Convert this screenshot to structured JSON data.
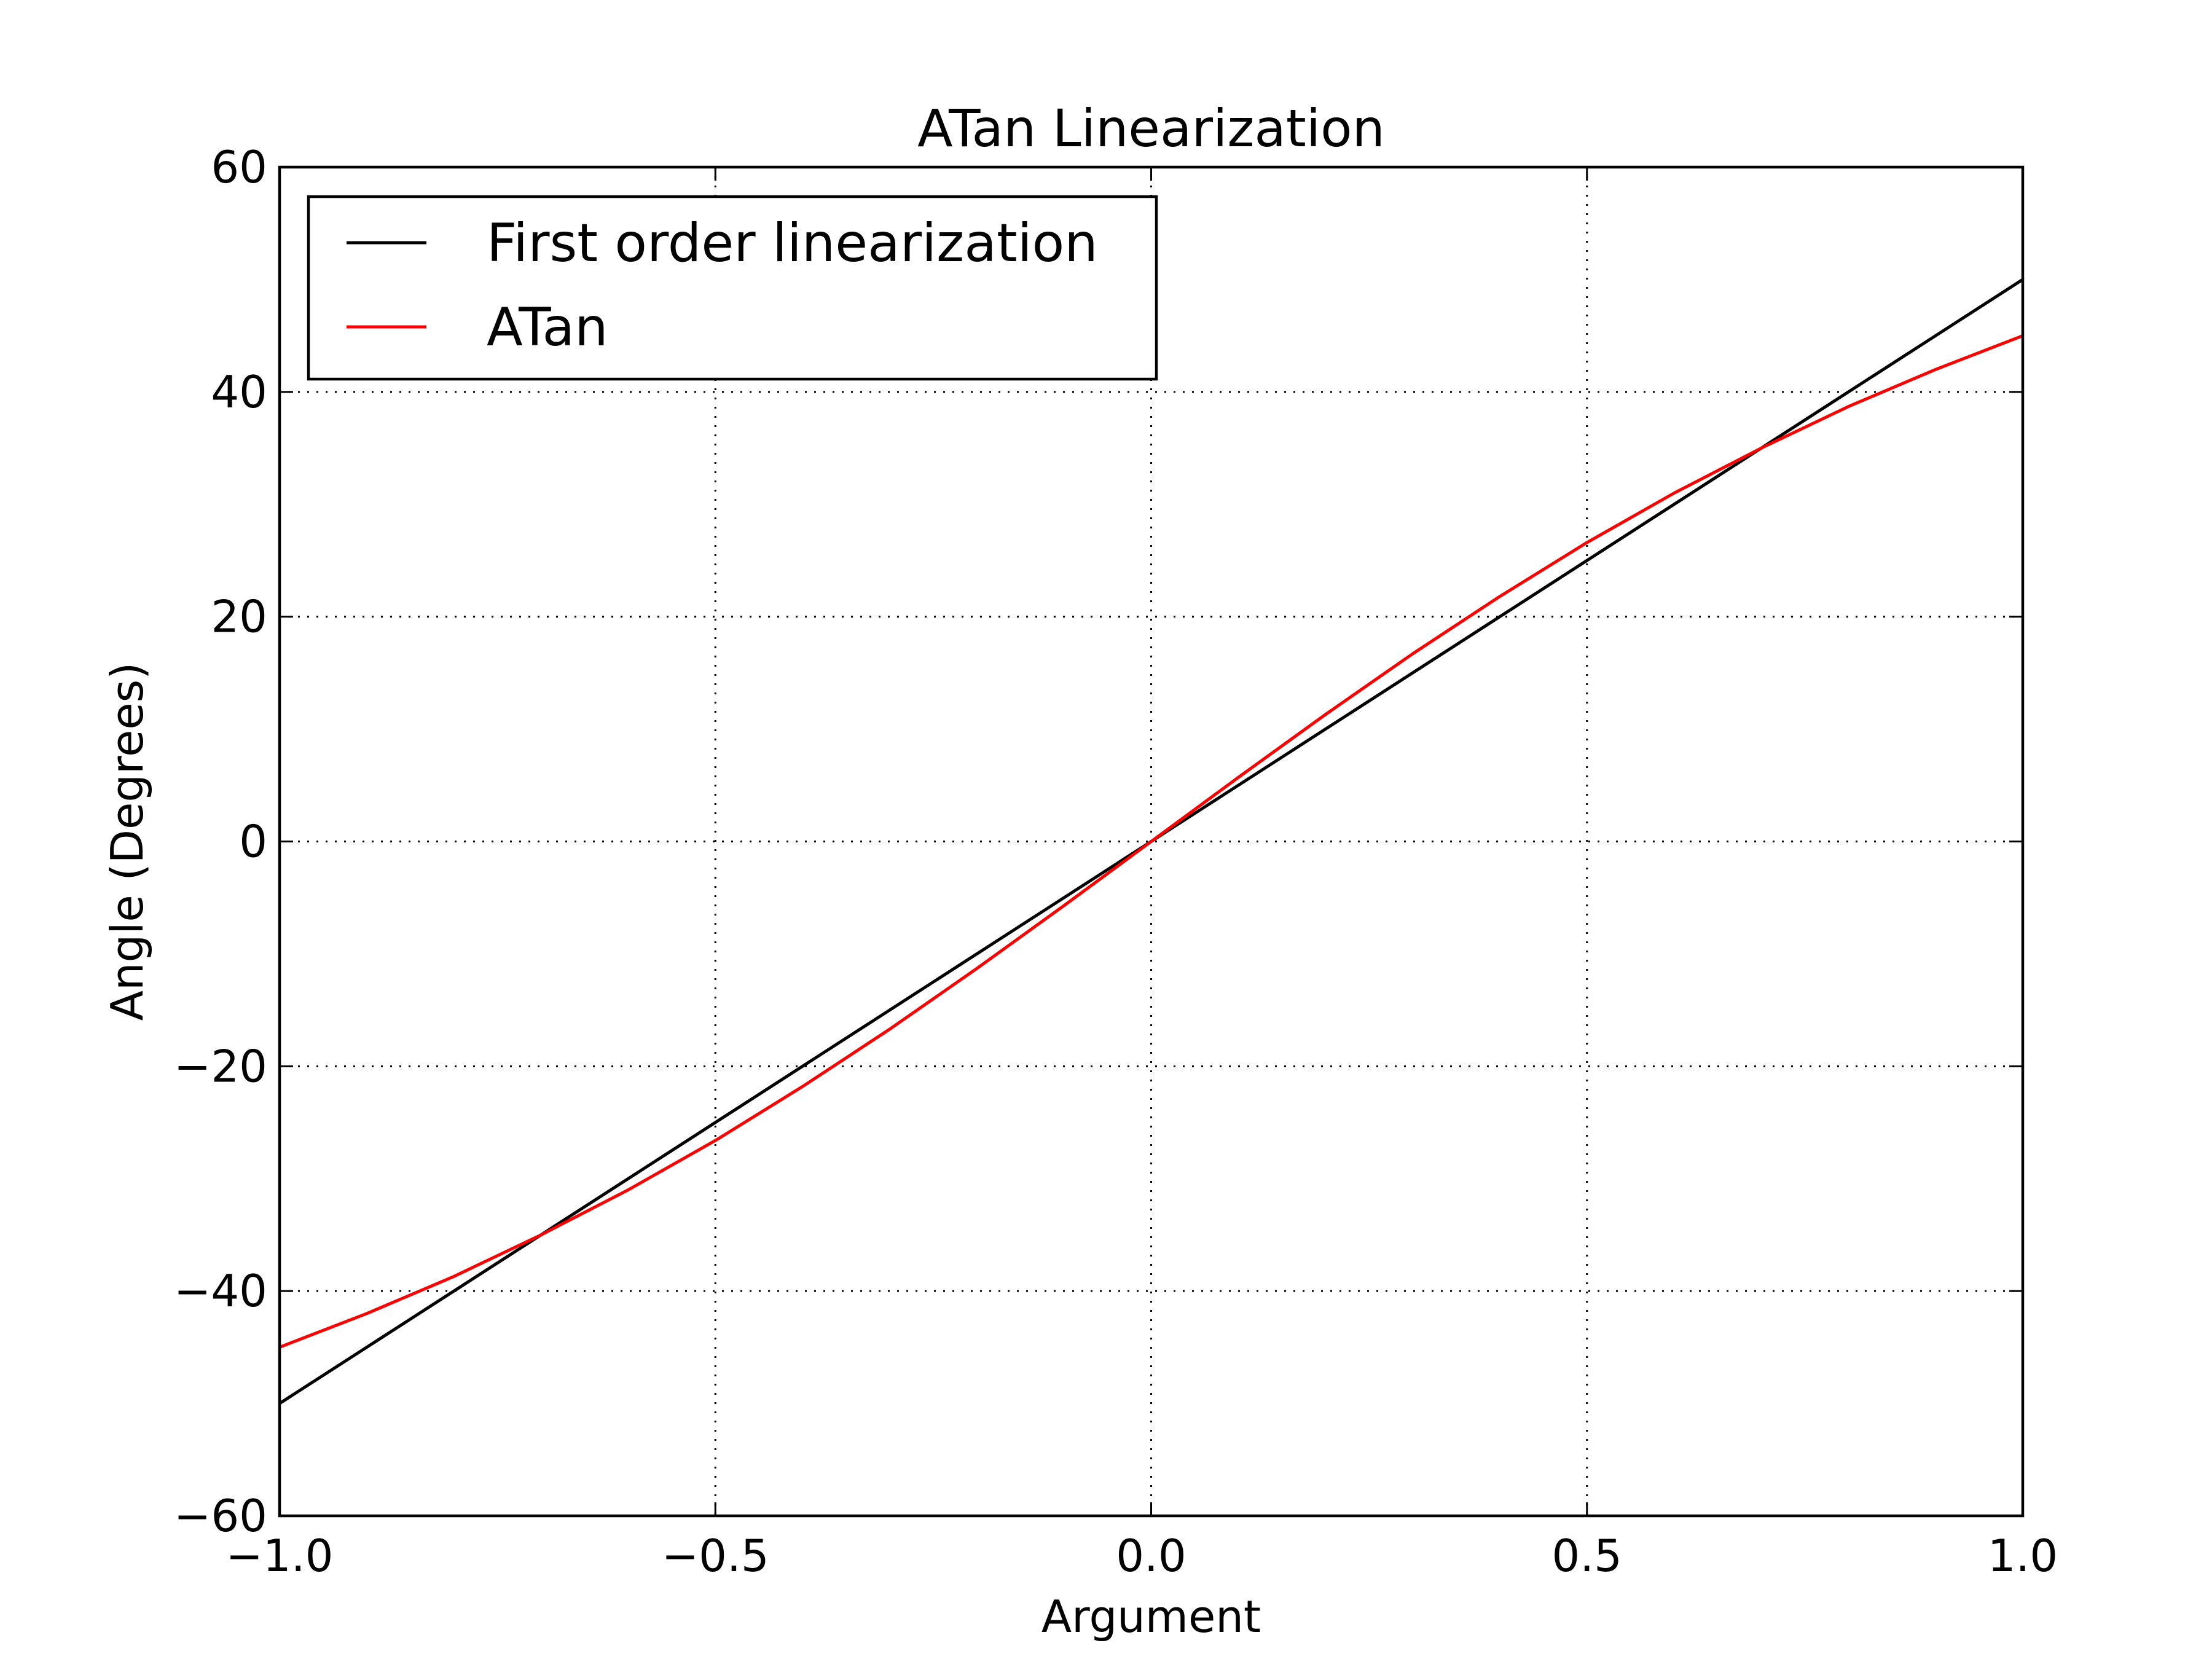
{
  "chart_data": {
    "type": "line",
    "title": "ATan Linearization",
    "xlabel": "Argument",
    "ylabel": "Angle (Degrees)",
    "xlim": [
      -1.0,
      1.0
    ],
    "ylim": [
      -60,
      60
    ],
    "x_ticks": [
      -1.0,
      -0.5,
      0.0,
      0.5,
      1.0
    ],
    "x_tick_labels": [
      "−1.0",
      "−0.5",
      "0.0",
      "0.5",
      "1.0"
    ],
    "y_ticks": [
      -60,
      -40,
      -20,
      0,
      20,
      40,
      60
    ],
    "y_tick_labels": [
      "−60",
      "−40",
      "−20",
      "0",
      "20",
      "40",
      "60"
    ],
    "grid": true,
    "grid_style": "dotted",
    "legend_position": "top-left",
    "series": [
      {
        "name": "First order linearization",
        "color": "#000000",
        "x": [
          -1.0,
          1.0
        ],
        "y": [
          -50.0,
          50.0
        ]
      },
      {
        "name": "ATan",
        "color": "#ff0000",
        "x": [
          -1.0,
          -0.9,
          -0.8,
          -0.7,
          -0.6,
          -0.5,
          -0.4,
          -0.3,
          -0.2,
          -0.1,
          0.0,
          0.1,
          0.2,
          0.3,
          0.4,
          0.5,
          0.6,
          0.7,
          0.8,
          0.9,
          1.0
        ],
        "y": [
          -45.0,
          -42.0,
          -38.7,
          -35.0,
          -31.0,
          -26.6,
          -21.8,
          -16.7,
          -11.3,
          -5.7,
          0.0,
          5.7,
          11.3,
          16.7,
          21.8,
          26.6,
          31.0,
          35.0,
          38.7,
          42.0,
          45.0
        ]
      }
    ]
  }
}
